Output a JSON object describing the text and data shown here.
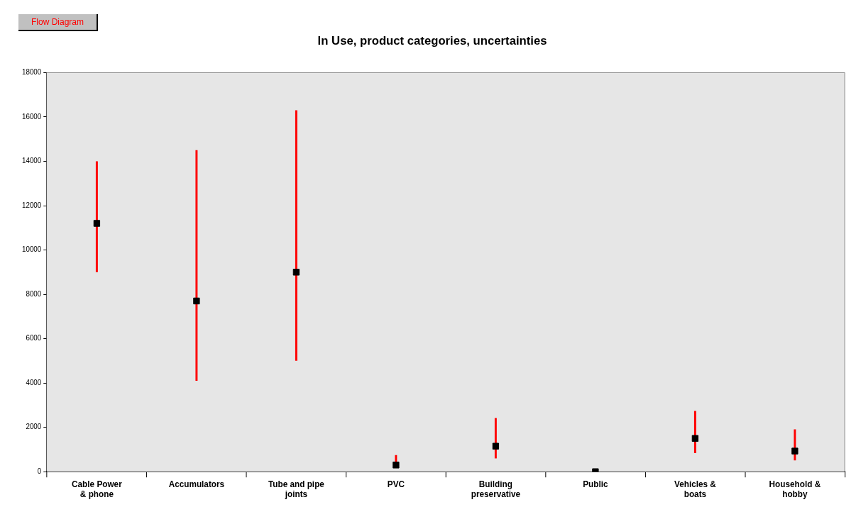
{
  "chart_data": {
    "type": "scatter",
    "title": "In Use, product categories, uncertainties",
    "annotations": [
      "Flow Diagram"
    ],
    "categories": [
      "Cable Power\n& phone",
      "Accumulators",
      "Tube and pipe\njoints",
      "PVC",
      "Building\npreservative",
      "Public",
      "Vehicles &\nboats",
      "Household &\nhobby"
    ],
    "series": [
      {
        "color": "#000000",
        "values": [
          11200,
          7700,
          9000,
          300,
          1150,
          0,
          1500,
          930
        ],
        "errors": [
          [
            9000,
            14000
          ],
          [
            4100,
            14500
          ],
          [
            5000,
            16300
          ],
          [
            200,
            750
          ],
          [
            600,
            2420
          ],
          null,
          [
            840,
            2740
          ],
          [
            510,
            1910
          ]
        ]
      }
    ],
    "ylim": [
      0,
      18000
    ],
    "yticks": [
      0,
      2000,
      4000,
      6000,
      8000,
      10000,
      12000,
      14000,
      16000,
      18000
    ],
    "grid": false,
    "legend": false,
    "marker": "square"
  }
}
